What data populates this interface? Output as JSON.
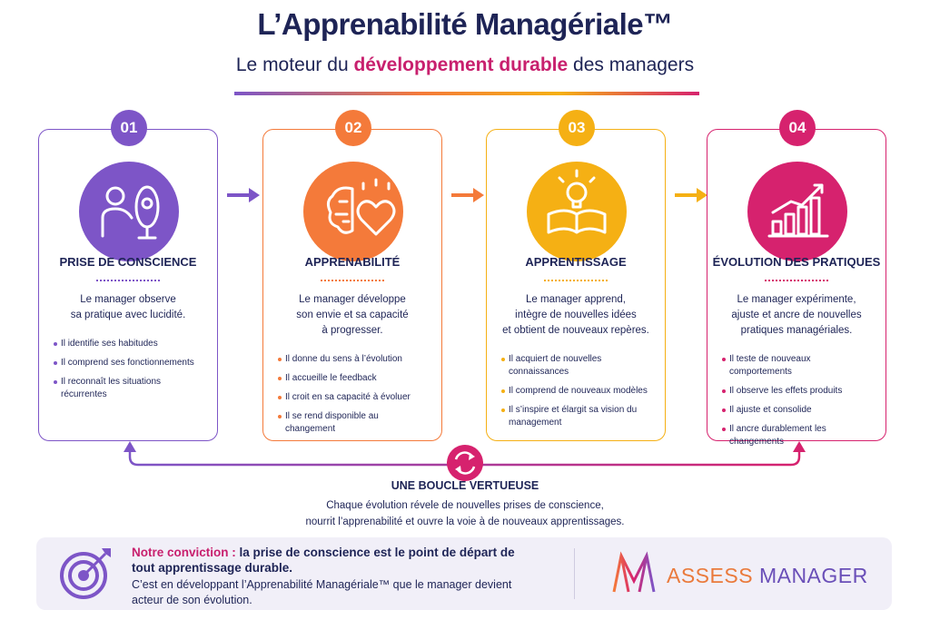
{
  "header": {
    "title": "L’Apprenabilité Managériale™",
    "subtitle": {
      "before": "Le moteur du",
      "highlight": "développement durable",
      "after": "des managers"
    }
  },
  "steps": [
    {
      "number": "01",
      "title": "PRISE DE CONSCIENCE",
      "color": "#7d55c7",
      "description": [
        "Le manager observe",
        "sa pratique avec lucidité."
      ],
      "bullets": [
        "Il identifie ses habitudes",
        "Il comprend ses fonctionnements",
        "Il reconnaît les situations récurrentes"
      ]
    },
    {
      "number": "02",
      "title": "APPRENABILITÉ",
      "color": "#f47a3a",
      "description": [
        "Le manager développe",
        "son envie et sa capacité",
        "à progresser."
      ],
      "bullets": [
        "Il donne du sens à l’évolution",
        "Il accueille le feedback",
        "Il croit en sa capacité à évoluer",
        "Il se rend disponible au changement"
      ]
    },
    {
      "number": "03",
      "title": "APPRENTISSAGE",
      "color": "#f5b014",
      "description": [
        "Le manager apprend,",
        "intègre de nouvelles idées",
        "et obtient de nouveaux repères."
      ],
      "bullets": [
        "Il acquiert de nouvelles connaissances",
        "Il comprend de nouveaux modèles",
        "Il s’inspire et élargit sa vision du management"
      ]
    },
    {
      "number": "04",
      "title": "ÉVOLUTION DES PRATIQUES",
      "color": "#d6226e",
      "description": [
        "Le manager expérimente,",
        "ajuste et ancre de nouvelles",
        "pratiques managériales."
      ],
      "bullets": [
        "Il teste de nouveaux comportements",
        "Il observe les effets produits",
        "Il ajuste et consolide",
        "Il ancre durablement les changements"
      ]
    }
  ],
  "loop": {
    "title": "UNE BOUCLE VERTUEUSE",
    "lines": [
      "Chaque évolution révele de nouvelles prises de conscience,",
      "nourrit l’apprenabilité et ouvre la voie à de nouveaux apprentissages."
    ]
  },
  "conviction": {
    "label": "Notre conviction :",
    "statement": "la prise de conscience est le point de départ de tout apprentissage durable.",
    "text": "C’est en développant l’Apprenabilité Managériale™ que le manager devient acteur de son évolution."
  },
  "brand": {
    "part1": "ASSESS",
    "part2": "MANAGER"
  }
}
